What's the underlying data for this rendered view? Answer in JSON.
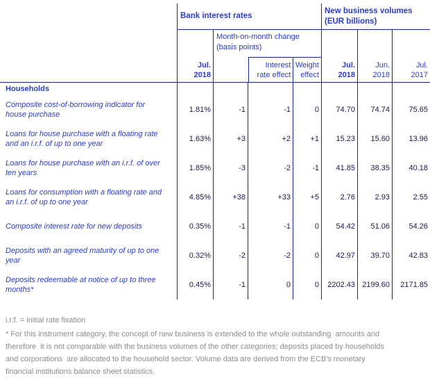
{
  "header": {
    "rates_group": "Bank interest rates",
    "volumes_group": "New business volumes (EUR billions)",
    "mom_change": "Month-on-month change (basis points)",
    "rate_period": "Jul.\n2018",
    "interest_effect": "Interest\nrate effect",
    "weight_effect": "Weight\neffect",
    "vol_period_1": "Jul.\n2018",
    "vol_period_2": "Jun.\n2018",
    "vol_period_3": "Jul.\n2017"
  },
  "section_label": "Households",
  "rows": [
    {
      "label": "Composite cost-of-borrowing indicator for house purchase",
      "rate": "1.81%",
      "chg": "-1",
      "ire": "-1",
      "we": "0",
      "v1": "74.70",
      "v2": "74.74",
      "v3": "75.65"
    },
    {
      "label": "Loans for house purchase with a floating rate and an i.r.f. of up to one year",
      "rate": "1.63%",
      "chg": "+3",
      "ire": "+2",
      "we": "+1",
      "v1": "15.23",
      "v2": "15.60",
      "v3": "13.96"
    },
    {
      "label": "Loans for house purchase with an i.r.f. of over ten years",
      "rate": "1.85%",
      "chg": "-3",
      "ire": "-2",
      "we": "-1",
      "v1": "41.85",
      "v2": "38.35",
      "v3": "40.18"
    },
    {
      "label": "Loans for consumption with a floating rate and an i.r.f. of up to one year",
      "rate": "4.85%",
      "chg": "+38",
      "ire": "+33",
      "we": "+5",
      "v1": "2.76",
      "v2": "2.93",
      "v3": "2.55"
    },
    {
      "label": "Composite interest rate for new deposits",
      "rate": "0.35%",
      "chg": "-1",
      "ire": "-1",
      "we": "0",
      "v1": "54.42",
      "v2": "51.06",
      "v3": "54.26"
    },
    {
      "label": "Deposits with an agreed maturity of up to one year",
      "rate": "0.32%",
      "chg": "-2",
      "ire": "-2",
      "we": "0",
      "v1": "42.97",
      "v2": "39.70",
      "v3": "42.83"
    },
    {
      "label": "Deposits redeemable at notice of up to three months*",
      "rate": "0.45%",
      "chg": "-1",
      "ire": "0",
      "we": "0",
      "v1": "2202.43",
      "v2": "2199.60",
      "v3": "2171.85"
    }
  ],
  "footnotes": {
    "abbreviation": "i.r.f. = initial rate fixation",
    "note_lines": [
      "* For this instrument category, the concept of new business is extended to the whole outstanding  amounts and",
      "therefore  it is not comparable with the business volumes of the other categories; deposits placed by households",
      "and corporations  are allocated to the household sector. Volume data are derived from the ECB's monetary",
      "financial institutions balance sheet statistics."
    ]
  },
  "colors": {
    "border": "#0d2f80",
    "text_blue": "#2b3dc8",
    "number": "#191950",
    "footnote_gray": "#8c8c8c"
  }
}
